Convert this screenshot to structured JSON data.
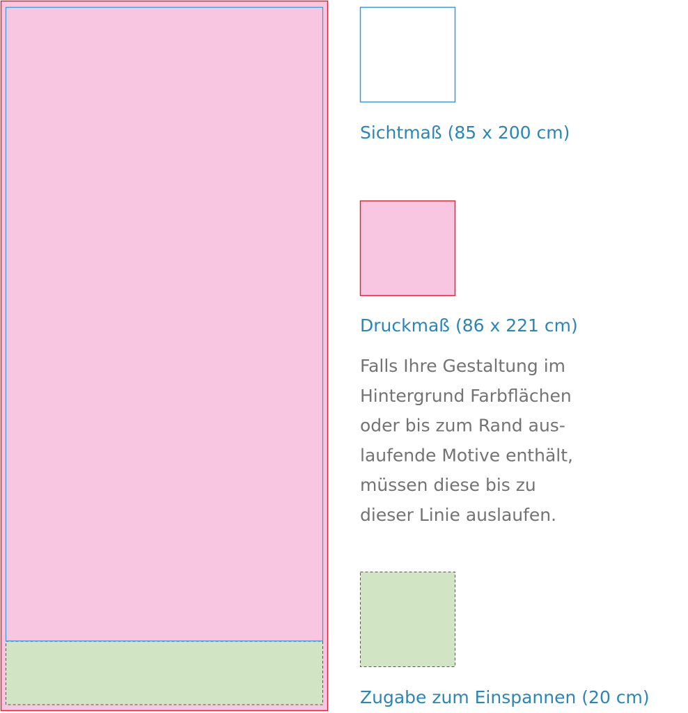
{
  "legend": [
    {
      "label": "Sichtmaß (85 x 200 cm)"
    },
    {
      "label": "Druckmaß (86 x 221 cm)",
      "description": [
        "Falls Ihre Gestaltung im",
        "Hintergrund Farbflächen",
        "oder bis zum Rand aus-",
        "laufende Motive enthält,",
        "müssen diese bis zu",
        "dieser Linie auslaufen."
      ]
    },
    {
      "label": "Zugabe zum Einspannen (20 cm)"
    }
  ]
}
